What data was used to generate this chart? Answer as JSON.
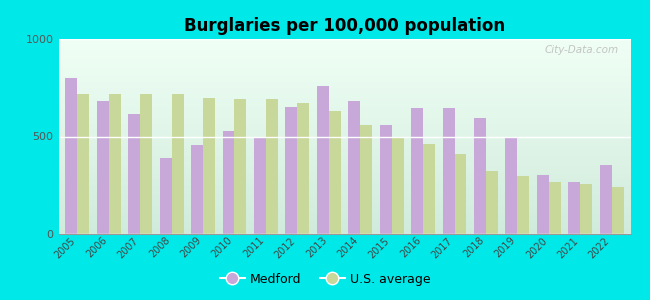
{
  "title": "Burglaries per 100,000 population",
  "years": [
    2005,
    2006,
    2007,
    2008,
    2009,
    2010,
    2011,
    2012,
    2013,
    2014,
    2015,
    2016,
    2017,
    2018,
    2019,
    2020,
    2021,
    2022
  ],
  "medford": [
    800,
    680,
    615,
    390,
    455,
    530,
    490,
    650,
    760,
    680,
    560,
    645,
    645,
    595,
    500,
    305,
    265,
    355
  ],
  "us_avg": [
    720,
    720,
    720,
    720,
    700,
    690,
    690,
    670,
    630,
    560,
    495,
    460,
    410,
    325,
    295,
    265,
    255,
    240
  ],
  "medford_color": "#c8a8d8",
  "us_avg_color": "#c8d89a",
  "background_outer": "#00e8e8",
  "ylim": [
    0,
    1000
  ],
  "yticks": [
    0,
    500,
    1000
  ],
  "bar_width": 0.38,
  "legend_medford": "Medford",
  "legend_us": "U.S. average",
  "watermark": "City-Data.com"
}
